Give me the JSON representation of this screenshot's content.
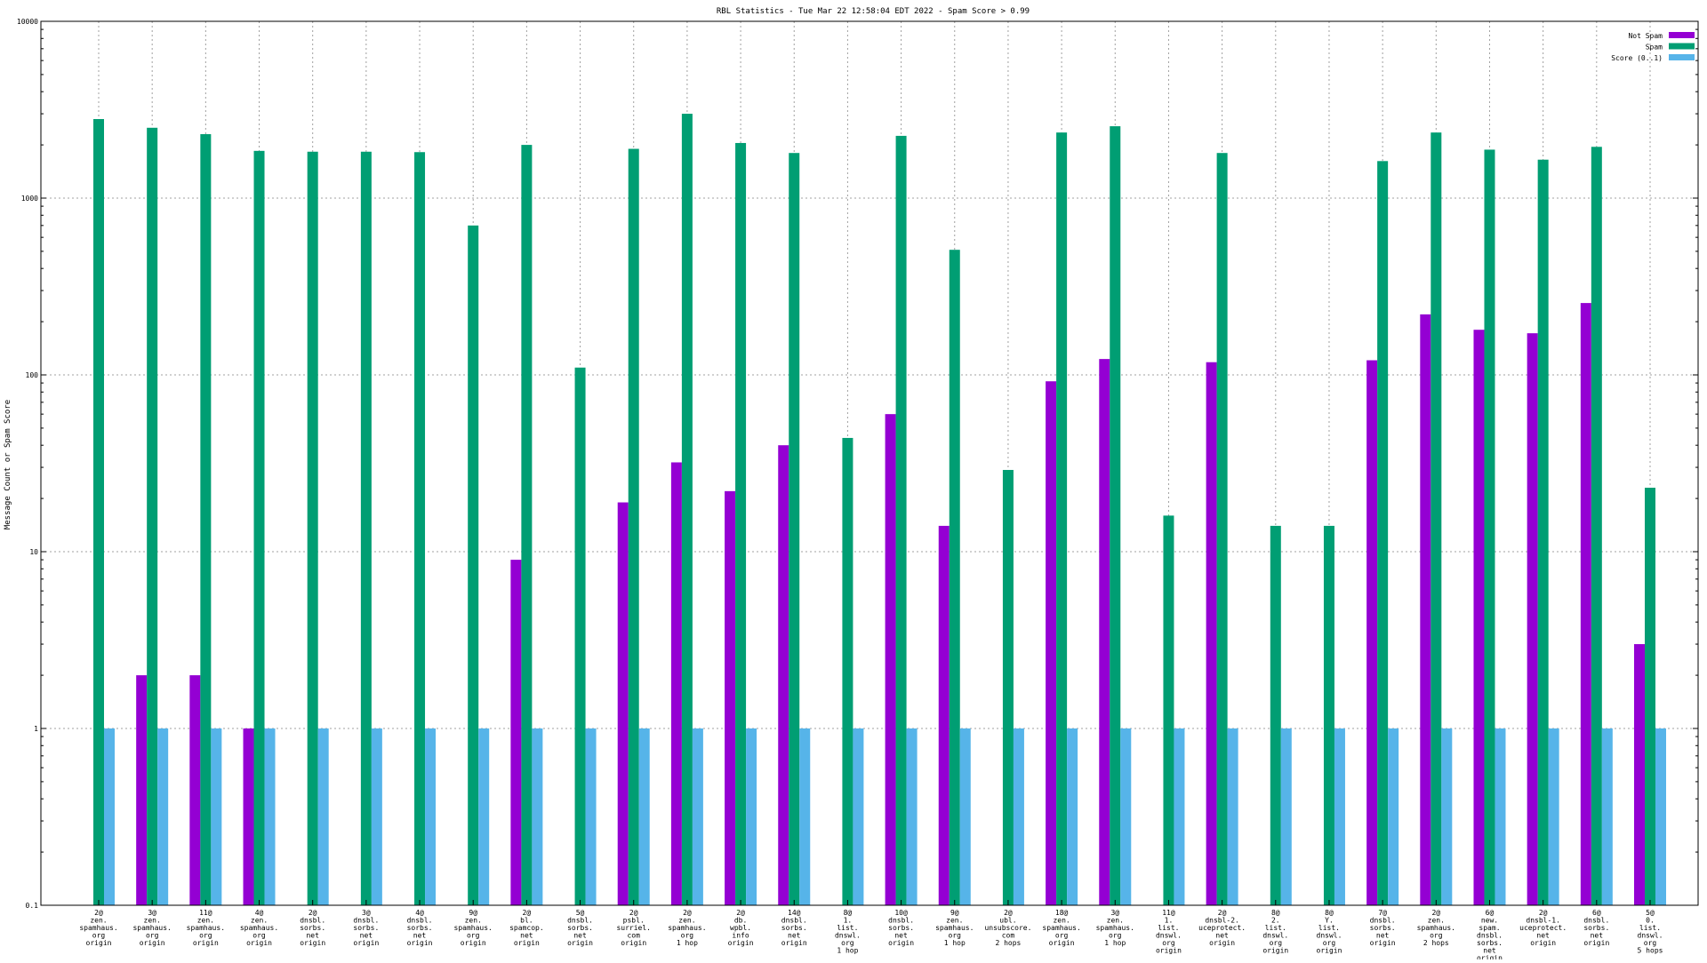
{
  "chart_data": {
    "type": "bar",
    "title": "RBL Statistics - Tue Mar 22 12:58:04 EDT 2022 - Spam Score > 0.99",
    "xlabel": "",
    "ylabel": "Message Count or Spam Score",
    "yscale": "log",
    "ylim": [
      0.1,
      10000
    ],
    "yticks": [
      "0.1",
      "1",
      "10",
      "100",
      "1000",
      "10000"
    ],
    "grid": true,
    "legend_position": "top-right",
    "categories": [
      [
        "2@",
        "zen.",
        "spamhaus.",
        "org",
        "origin"
      ],
      [
        "3@",
        "zen.",
        "spamhaus.",
        "org",
        "origin"
      ],
      [
        "11@",
        "zen.",
        "spamhaus.",
        "org",
        "origin"
      ],
      [
        "4@",
        "zen.",
        "spamhaus.",
        "org",
        "origin"
      ],
      [
        "2@",
        "dnsbl.",
        "sorbs.",
        "net",
        "origin"
      ],
      [
        "3@",
        "dnsbl.",
        "sorbs.",
        "net",
        "origin"
      ],
      [
        "4@",
        "dnsbl.",
        "sorbs.",
        "net",
        "origin"
      ],
      [
        "9@",
        "zen.",
        "spamhaus.",
        "org",
        "origin"
      ],
      [
        "2@",
        "bl.",
        "spamcop.",
        "net",
        "origin"
      ],
      [
        "5@",
        "dnsbl.",
        "sorbs.",
        "net",
        "origin"
      ],
      [
        "2@",
        "psbl.",
        "surriel.",
        "com",
        "origin"
      ],
      [
        "2@",
        "zen.",
        "spamhaus.",
        "org",
        "1 hop"
      ],
      [
        "2@",
        "db.",
        "wpbl.",
        "info",
        "origin"
      ],
      [
        "14@",
        "dnsbl.",
        "sorbs.",
        "net",
        "origin"
      ],
      [
        "8@",
        "1.",
        "list.",
        "dnswl.",
        "org",
        "1 hop"
      ],
      [
        "10@",
        "dnsbl.",
        "sorbs.",
        "net",
        "origin"
      ],
      [
        "9@",
        "zen.",
        "spamhaus.",
        "org",
        "1 hop"
      ],
      [
        "2@",
        "ubl.",
        "unsubscore.",
        "com",
        "2 hops"
      ],
      [
        "18@",
        "zen.",
        "spamhaus.",
        "org",
        "origin"
      ],
      [
        "3@",
        "zen.",
        "spamhaus.",
        "org",
        "1 hop"
      ],
      [
        "11@",
        "1.",
        "list.",
        "dnswl.",
        "org",
        "origin"
      ],
      [
        "2@",
        "dnsbl-2.",
        "uceprotect.",
        "net",
        "origin"
      ],
      [
        "8@",
        "2.",
        "list.",
        "dnswl.",
        "org",
        "origin"
      ],
      [
        "8@",
        "Y.",
        "list.",
        "dnswl.",
        "org",
        "origin"
      ],
      [
        "7@",
        "dnsbl.",
        "sorbs.",
        "net",
        "origin"
      ],
      [
        "2@",
        "zen.",
        "spamhaus.",
        "org",
        "2 hops"
      ],
      [
        "6@",
        "new.",
        "spam.",
        "dnsbl.",
        "sorbs.",
        "net",
        "origin"
      ],
      [
        "2@",
        "dnsbl-1.",
        "uceprotect.",
        "net",
        "origin"
      ],
      [
        "6@",
        "dnsbl.",
        "sorbs.",
        "net",
        "origin"
      ],
      [
        "5@",
        "0.",
        "list.",
        "dnswl.",
        "org",
        "5 hops"
      ]
    ],
    "series": [
      {
        "name": "Not Spam",
        "color": "#9400d3",
        "values": [
          0,
          2,
          2,
          1,
          0,
          0,
          0,
          0,
          9,
          0,
          19,
          32,
          22,
          40,
          0,
          60,
          14,
          0,
          92,
          123,
          0,
          118,
          0,
          0,
          121,
          220,
          180,
          172,
          255,
          3
        ]
      },
      {
        "name": "Spam",
        "color": "#009e73",
        "values": [
          2800,
          2500,
          2300,
          1850,
          1830,
          1830,
          1820,
          700,
          2000,
          110,
          1900,
          3000,
          2050,
          1800,
          44,
          2250,
          510,
          29,
          2350,
          2550,
          16,
          1800,
          14,
          14,
          1620,
          2350,
          1880,
          1650,
          1950,
          23
        ]
      },
      {
        "name": "Score (0..1)",
        "color": "#56b4e9",
        "values": [
          1,
          1,
          1,
          1,
          1,
          1,
          1,
          1,
          1,
          1,
          1,
          1,
          1,
          1,
          1,
          1,
          1,
          1,
          1,
          1,
          1,
          1,
          1,
          1,
          1,
          1,
          1,
          1,
          1,
          1
        ]
      }
    ]
  }
}
